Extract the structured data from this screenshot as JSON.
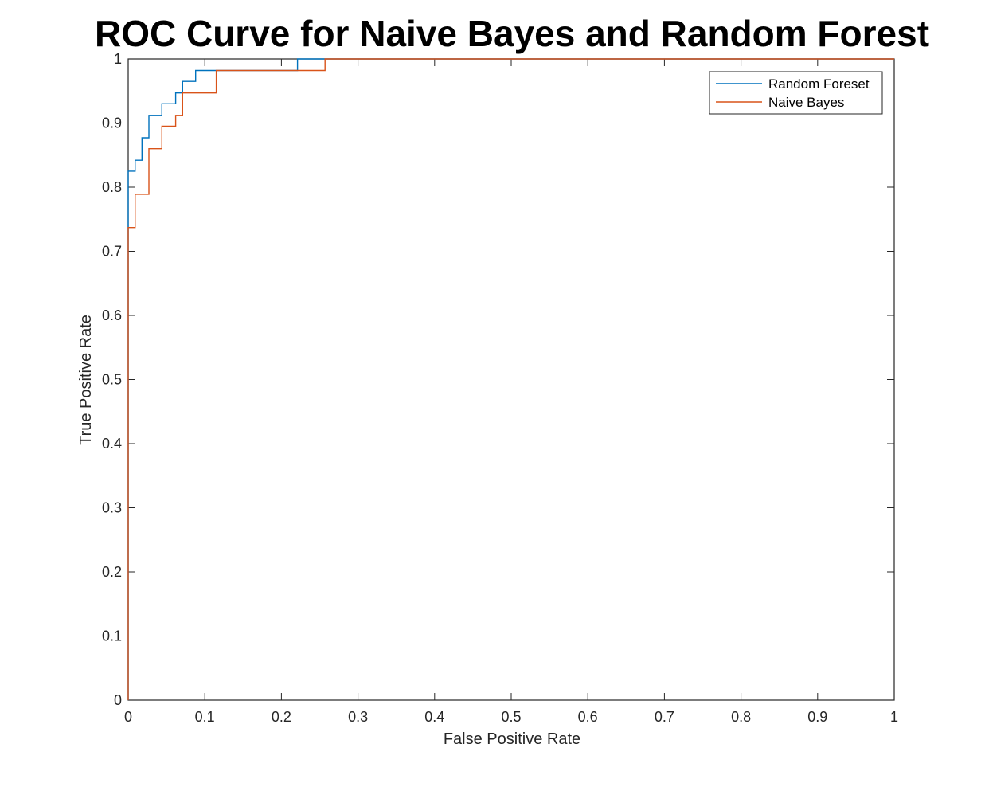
{
  "chart_data": {
    "type": "line",
    "title": "ROC Curve for Naive Bayes and Random Forest",
    "xlabel": "False Positive Rate",
    "ylabel": "True Positive Rate",
    "xlim": [
      0,
      1
    ],
    "ylim": [
      0,
      1
    ],
    "xticks": [
      0,
      0.1,
      0.2,
      0.3,
      0.4,
      0.5,
      0.6,
      0.7,
      0.8,
      0.9,
      1
    ],
    "yticks": [
      0,
      0.1,
      0.2,
      0.3,
      0.4,
      0.5,
      0.6,
      0.7,
      0.8,
      0.9,
      1
    ],
    "xtick_labels": [
      "0",
      "0.1",
      "0.2",
      "0.3",
      "0.4",
      "0.5",
      "0.6",
      "0.7",
      "0.8",
      "0.9",
      "1"
    ],
    "ytick_labels": [
      "0",
      "0.1",
      "0.2",
      "0.3",
      "0.4",
      "0.5",
      "0.6",
      "0.7",
      "0.8",
      "0.9",
      "1"
    ],
    "grid": false,
    "legend_position": "top-right",
    "series": [
      {
        "name": "Random Foreset",
        "color": "#0072BD",
        "x": [
          0,
          0,
          0.009,
          0.009,
          0.018,
          0.018,
          0.027,
          0.027,
          0.044,
          0.044,
          0.062,
          0.062,
          0.071,
          0.071,
          0.088,
          0.088,
          0.221,
          0.221,
          1
        ],
        "y": [
          0,
          0.825,
          0.825,
          0.842,
          0.842,
          0.877,
          0.877,
          0.912,
          0.912,
          0.93,
          0.93,
          0.947,
          0.947,
          0.965,
          0.965,
          0.982,
          0.982,
          1,
          1
        ]
      },
      {
        "name": "Naive Bayes",
        "color": "#D95319",
        "x": [
          0,
          0,
          0.009,
          0.009,
          0.027,
          0.027,
          0.044,
          0.044,
          0.062,
          0.062,
          0.071,
          0.071,
          0.115,
          0.115,
          0.257,
          0.257,
          1
        ],
        "y": [
          0,
          0.737,
          0.737,
          0.789,
          0.789,
          0.86,
          0.86,
          0.895,
          0.895,
          0.912,
          0.912,
          0.947,
          0.947,
          0.982,
          0.982,
          1,
          1
        ]
      }
    ]
  }
}
